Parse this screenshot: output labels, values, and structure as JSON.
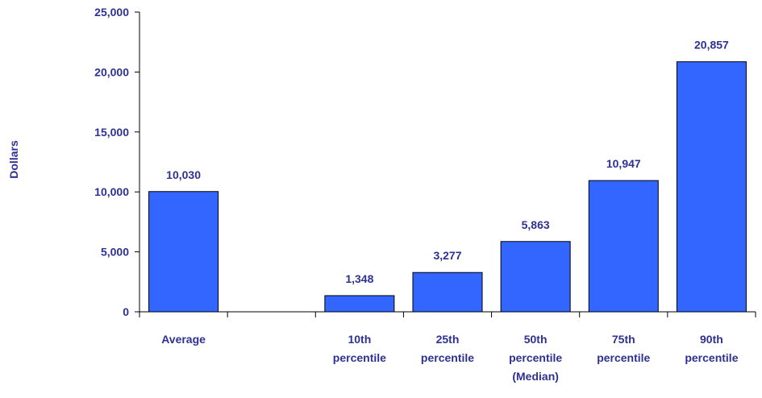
{
  "chart_data": {
    "type": "bar",
    "ylabel": "Dollars",
    "ylim": [
      0,
      25000
    ],
    "yticks": [
      0,
      5000,
      10000,
      15000,
      20000,
      25000
    ],
    "ytick_labels": [
      "0",
      "5,000",
      "10,000",
      "15,000",
      "20,000",
      "25,000"
    ],
    "categories": [
      [
        "Average"
      ],
      [],
      [
        "10th",
        "percentile"
      ],
      [
        "25th",
        "percentile"
      ],
      [
        "50th",
        "percentile",
        "(Median)"
      ],
      [
        "75th",
        "percentile"
      ],
      [
        "90th",
        "percentile"
      ]
    ],
    "values": [
      10030,
      null,
      1348,
      3277,
      5863,
      10947,
      20857
    ],
    "data_labels": [
      "10,030",
      "",
      "1,348",
      "3,277",
      "5,863",
      "10,947",
      "20,857"
    ],
    "grid": false,
    "colors": {
      "bar": "#3366ff",
      "text": "#2e3192",
      "axis": "#000000"
    }
  }
}
